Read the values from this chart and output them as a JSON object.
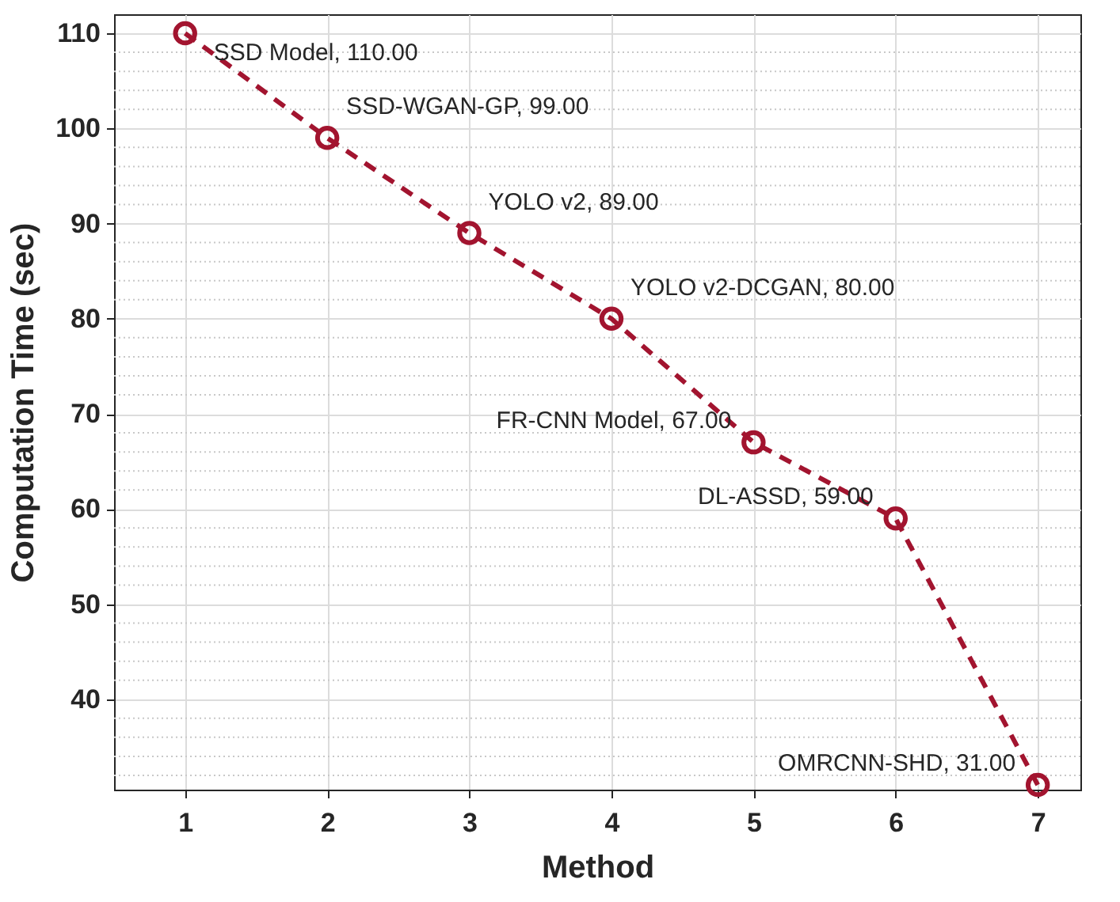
{
  "chart_data": {
    "type": "line",
    "xlabel": "Method",
    "ylabel": "Computation Time (sec)",
    "x": [
      1,
      2,
      3,
      4,
      5,
      6,
      7
    ],
    "series": [
      {
        "color": "#a2142f",
        "values": [
          110,
          99,
          89,
          80,
          67,
          59,
          31
        ]
      }
    ],
    "xlim": [
      0.5,
      7.3
    ],
    "xticks": [
      1,
      2,
      3,
      4,
      5,
      6,
      7
    ],
    "ylim": [
      30.5,
      112
    ],
    "yticks": [
      {
        "value": 32,
        "label": null
      },
      {
        "value": 34,
        "label": null
      },
      {
        "value": 36,
        "label": null
      },
      {
        "value": 38,
        "label": null
      },
      40,
      {
        "value": 42,
        "label": null
      },
      {
        "value": 44,
        "label": null
      },
      {
        "value": 46,
        "label": null
      },
      {
        "value": 48,
        "label": null
      },
      50,
      {
        "value": 52,
        "label": null
      },
      {
        "value": 54,
        "label": null
      },
      {
        "value": 56,
        "label": null
      },
      {
        "value": 58,
        "label": null
      },
      60,
      {
        "value": 62,
        "label": null
      },
      {
        "value": 64,
        "label": null
      },
      {
        "value": 66,
        "label": null
      },
      {
        "value": 68,
        "label": null
      },
      70,
      {
        "value": 72,
        "label": null
      },
      {
        "value": 74,
        "label": null
      },
      {
        "value": 76,
        "label": null
      },
      {
        "value": 78,
        "label": null
      },
      80,
      {
        "value": 82,
        "label": null
      },
      {
        "value": 84,
        "label": null
      },
      {
        "value": 86,
        "label": null
      },
      {
        "value": 88,
        "label": null
      },
      90,
      {
        "value": 92,
        "label": null
      },
      {
        "value": 94,
        "label": null
      },
      {
        "value": 96,
        "label": null
      },
      {
        "value": 98,
        "label": null
      },
      100,
      {
        "value": 102,
        "label": null
      },
      {
        "value": 104,
        "label": null
      },
      {
        "value": 106,
        "label": null
      },
      {
        "value": 108,
        "label": null
      },
      110
    ],
    "grid": true,
    "marker": "circle",
    "line_style": "dashed",
    "annotations": [
      {
        "text": "SSD Model, 110.00",
        "x": 1,
        "y": 110
      },
      {
        "text": "SSD-WGAN-GP, 99.00",
        "x": 2,
        "y": 99
      },
      {
        "text": "YOLO v2, 89.00",
        "x": 3,
        "y": 89
      },
      {
        "text": "YOLO v2-DCGAN, 80.00",
        "x": 4,
        "y": 80
      },
      {
        "text": "FR-CNN Model, 67.00",
        "x": 5,
        "y": 67
      },
      {
        "text": "DL-ASSD, 59.00",
        "x": 6,
        "y": 59
      },
      {
        "text": "OMRCNN-SHD, 31.00",
        "x": 7,
        "y": 31
      }
    ]
  }
}
